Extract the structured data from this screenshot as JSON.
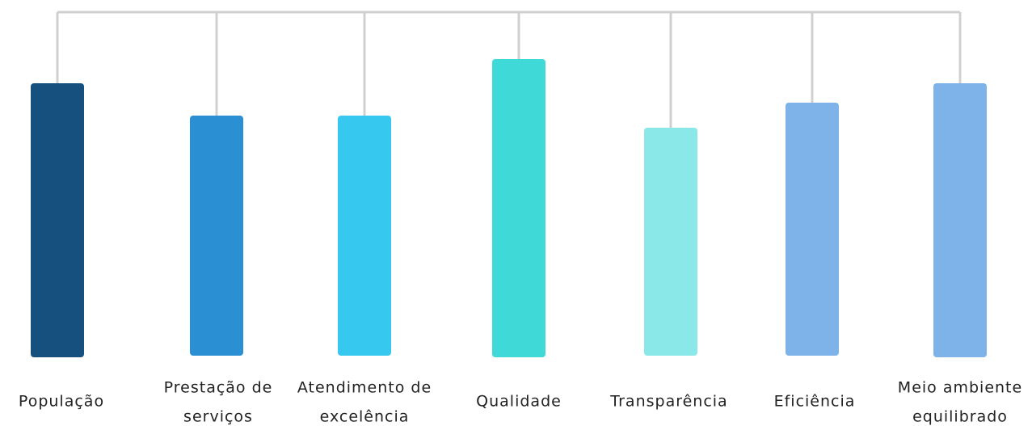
{
  "nodes": [
    {
      "label": [
        "População"
      ],
      "color": "#15507f"
    },
    {
      "label": [
        "Prestação de",
        "serviços"
      ],
      "color": "#2b8fd4"
    },
    {
      "label": [
        "Atendimento de",
        "excelência"
      ],
      "color": "#36c8ee"
    },
    {
      "label": [
        "Qualidade"
      ],
      "color": "#3fdad8"
    },
    {
      "label": [
        "Transparência"
      ],
      "color": "#8ae8e8"
    },
    {
      "label": [
        "Eficiência"
      ],
      "color": "#7db3e8"
    },
    {
      "label": [
        "Meio ambiente",
        "equilibrado"
      ],
      "color": "#7db3e8"
    }
  ]
}
